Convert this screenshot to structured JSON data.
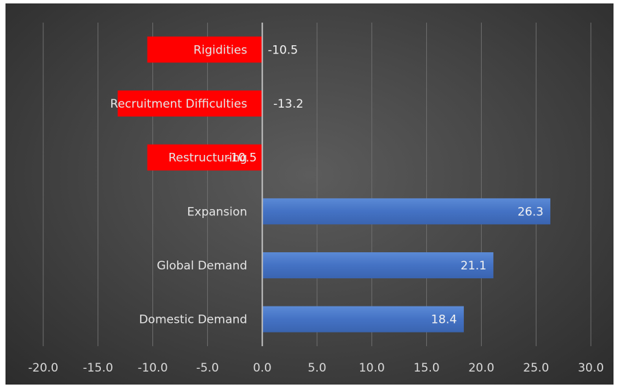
{
  "chart_data": {
    "type": "bar",
    "orientation": "horizontal",
    "categories": [
      "Domestic Demand",
      "Global Demand",
      "Expansion",
      "Restructuring",
      "Recruitment Difficulties",
      "Rigidities"
    ],
    "values": [
      18.4,
      21.1,
      26.3,
      -10.5,
      -13.2,
      -10.5
    ],
    "data_labels": [
      "18.4",
      "21.1",
      "26.3",
      "-10.5",
      "-13.2",
      "-10.5"
    ],
    "x_ticks": [
      "-20.0",
      "-15.0",
      "-10.0",
      "-5.0",
      "0.0",
      "5.0",
      "10.0",
      "15.0",
      "20.0",
      "25.0",
      "30.0"
    ],
    "xlim": [
      -20,
      30
    ],
    "grid": true,
    "legend": "none",
    "colors": {
      "positive": "#4472c4",
      "negative": "#ff0000",
      "background": "#474747"
    }
  }
}
